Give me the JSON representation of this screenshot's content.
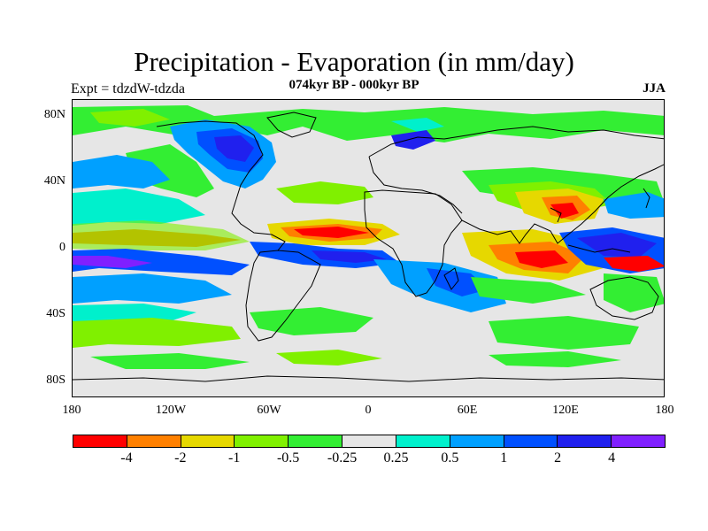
{
  "title": "Precipitation - Evaporation (in mm/day)",
  "subtitle": "074kyr BP - 000kyr BP",
  "left_label": "Expt = tdzdW-tdzda",
  "right_label": "JJA",
  "lat_ticks": [
    "80N",
    "40N",
    "0",
    "40S",
    "80S"
  ],
  "lon_ticks": [
    "180",
    "120W",
    "60W",
    "0",
    "60E",
    "120E",
    "180"
  ],
  "colorbar": {
    "colors": [
      "#ff0000",
      "#ff8000",
      "#e6d800",
      "#80f000",
      "#33ee33",
      "#e6e6e6",
      "#00f0cc",
      "#00a0ff",
      "#0050ff",
      "#2020ee",
      "#8020ff"
    ],
    "labels": [
      "-4",
      "-2",
      "-1",
      "-0.5",
      "-0.25",
      "0.25",
      "0.5",
      "1",
      "2",
      "4"
    ]
  }
}
